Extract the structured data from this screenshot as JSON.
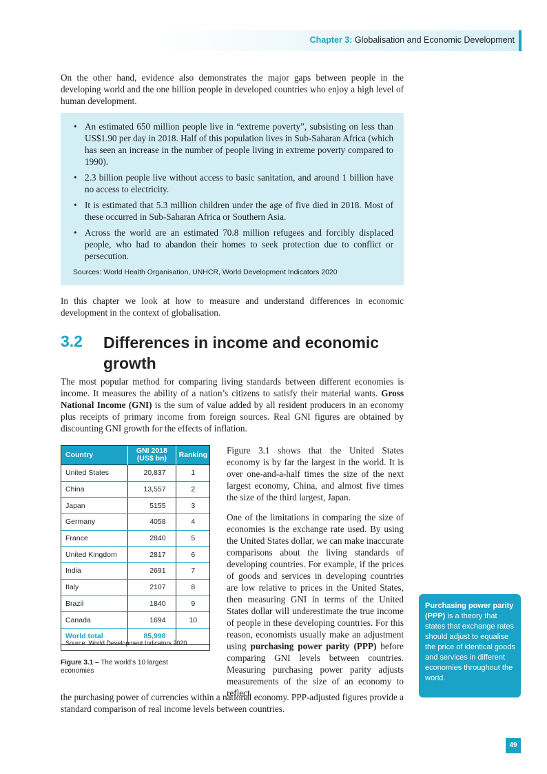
{
  "header": {
    "chapter": "Chapter 3:",
    "title": "Globalisation and Economic Development"
  },
  "intro": "On the other hand, evidence also demonstrates the major gaps between people in the developing world and the one billion people in developed countries who enjoy a high level of human development.",
  "box": {
    "bullets": [
      "An estimated 650 million people live in “extreme poverty”, subsisting on less than US$1.90 per day in 2018. Half of this population lives in Sub-Saharan Africa (which has seen an increase in the number of people living in extreme poverty compared to 1990).",
      "2.3 billion people live without access to basic sanitation, and around 1 billion have no access to electricity.",
      "It is estimated that 5.3 million children under the age of five died in 2018. Most of these occurred in Sub-Saharan Africa or Southern Asia.",
      "Across the world are an estimated 70.8 million refugees and forcibly displaced people, who had to abandon their homes to seek protection due to conflict or persecution."
    ],
    "sources": "Sources: World Health Organisation, UNHCR, World Development Indicators 2020"
  },
  "chapter_intro": "In this chapter we look at how to measure and understand differences in economic development in the context of globalisation.",
  "section": {
    "number": "3.2",
    "title": "Differences in income and economic growth"
  },
  "para1": {
    "before": "The most popular method for comparing living standards between different economies is income. It measures the ability of a nation’s citizens to satisfy their material wants. ",
    "bold": "Gross National Income (GNI)",
    "after": " is the sum of value added by all resident producers in an economy plus receipts of primary income from foreign sources. Real GNI figures are obtained by discounting GNI growth for the effects of inflation."
  },
  "table": {
    "headers": [
      "Country",
      "GNI 2018 (US$ bn)",
      "Ranking"
    ],
    "rows": [
      [
        "United States",
        "20,837",
        "1"
      ],
      [
        "China",
        "13,557",
        "2"
      ],
      [
        "Japan",
        "5155",
        "3"
      ],
      [
        "Germany",
        "4058",
        "4"
      ],
      [
        "France",
        "2840",
        "5"
      ],
      [
        "United Kingdom",
        "2817",
        "6"
      ],
      [
        "India",
        "2691",
        "7"
      ],
      [
        "Italy",
        "2107",
        "8"
      ],
      [
        "Brazil",
        "1840",
        "9"
      ],
      [
        "Canada",
        "1694",
        "10"
      ]
    ],
    "total_label": "World total",
    "total_value": "85,998",
    "source": "Source: World Development Indicators 2020"
  },
  "figure_caption": {
    "label": "Figure 3.1 –",
    "text": " The world’s 10 largest economies"
  },
  "col_para1": "Figure 3.1 shows that the United States economy is by far the largest in the world. It is over one-and-a-half times the size of the next largest economy, China, and almost five times the size of the third largest, Japan.",
  "col_para2": {
    "before": "One of the limitations in comparing the size of economies is the exchange rate used. By using the United States dollar, we can make inaccurate comparisons about the living standards of developing countries. For example, if the prices of goods and services in developing countries are low relative to prices in the United States, then measuring GNI in terms of the United States dollar will underestimate the true income of people in these developing countries. For this reason, economists usually make an adjustment using ",
    "bold": "purchasing power parity (PPP)",
    "after": " before comparing GNI levels between countries. Measuring purchasing power parity adjusts measurements of the size of an economy to reflect"
  },
  "final_para": "the purchasing power of currencies within a national economy. PPP-adjusted figures provide a standard comparison of real income levels between countries.",
  "sidebar": {
    "term": "Purchasing power parity (PPP)",
    "definition": " is a theory that states that exchange rates should adjust to equalise the price of identical goods and services in different economies throughout the world."
  },
  "page_number": "49",
  "colors": {
    "accent": "#1aa3c7",
    "box_bg": "#d4eef6"
  }
}
